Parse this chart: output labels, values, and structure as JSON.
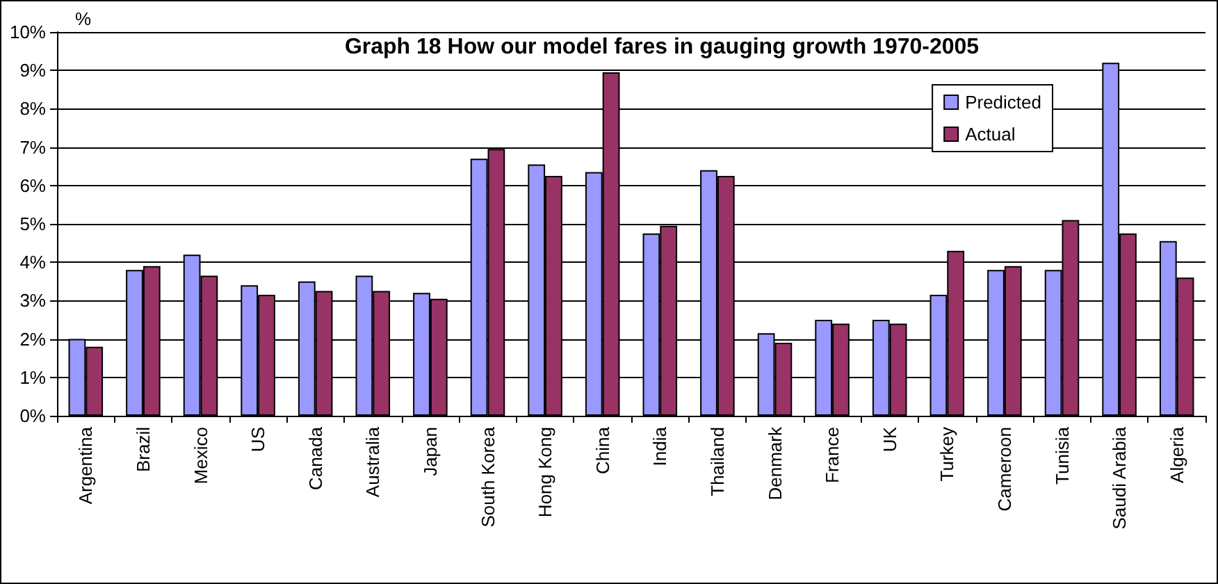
{
  "chart_data": {
    "type": "bar",
    "title": "Graph 18 How our model fares in gauging growth 1970-2005",
    "ylabel": "%",
    "categories": [
      "Argentina",
      "Brazil",
      "Mexico",
      "US",
      "Canada",
      "Australia",
      "Japan",
      "South Korea",
      "Hong Kong",
      "China",
      "India",
      "Thailand",
      "Denmark",
      "France",
      "UK",
      "Turkey",
      "Cameroon",
      "Tunisia",
      "Saudi Arabia",
      "Algeria"
    ],
    "series": [
      {
        "name": "Predicted",
        "color": "#9999ff",
        "values": [
          2.0,
          3.8,
          4.2,
          3.4,
          3.5,
          3.65,
          3.2,
          6.7,
          6.55,
          6.35,
          4.75,
          6.4,
          2.15,
          2.5,
          2.5,
          3.15,
          3.8,
          3.8,
          9.2,
          4.55
        ]
      },
      {
        "name": "Actual",
        "color": "#993366",
        "values": [
          1.8,
          3.9,
          3.65,
          3.15,
          3.25,
          3.25,
          3.05,
          6.95,
          6.25,
          8.95,
          4.95,
          6.25,
          1.9,
          2.4,
          2.4,
          4.3,
          3.9,
          5.1,
          4.75,
          3.6
        ]
      }
    ],
    "ylim": [
      0,
      10
    ],
    "yticks": [
      {
        "value": 0,
        "label": "0%"
      },
      {
        "value": 1,
        "label": "1%"
      },
      {
        "value": 2,
        "label": "2%"
      },
      {
        "value": 3,
        "label": "3%"
      },
      {
        "value": 4,
        "label": "4%"
      },
      {
        "value": 5,
        "label": "5%"
      },
      {
        "value": 6,
        "label": "6%"
      },
      {
        "value": 7,
        "label": "7%"
      },
      {
        "value": 8,
        "label": "8%"
      },
      {
        "value": 9,
        "label": "9%"
      },
      {
        "value": 10,
        "label": "10%"
      }
    ],
    "grid": "y",
    "legend": "top right"
  }
}
